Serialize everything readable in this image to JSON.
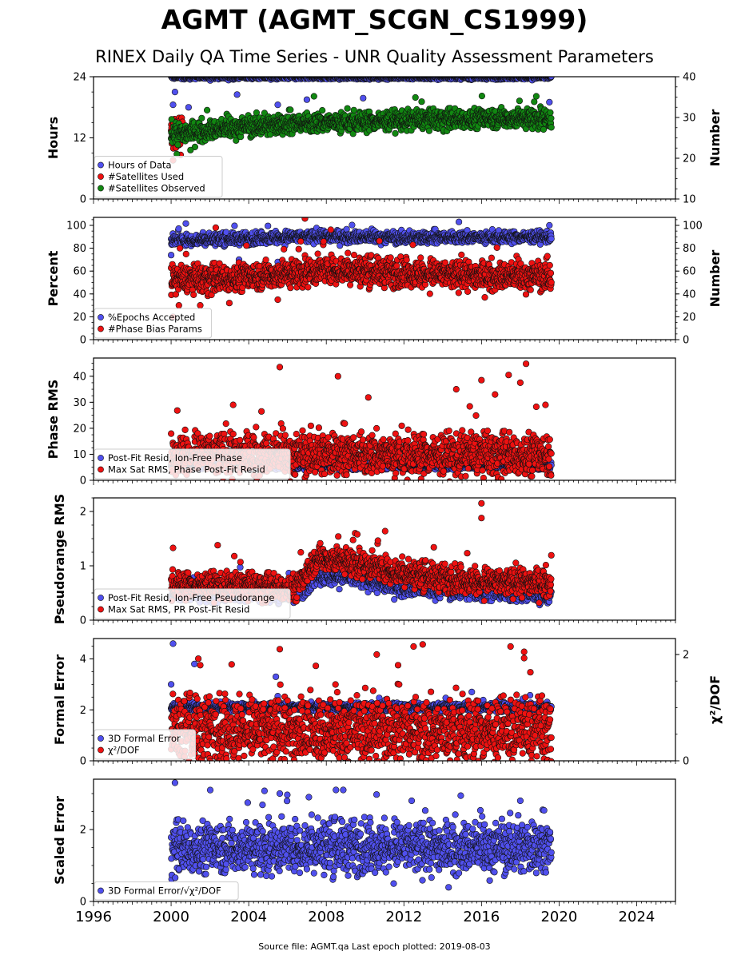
{
  "title": "AGMT (AGMT_SCGN_CS1999)",
  "subtitle": "RINEX Daily QA Time Series - UNR Quality Assessment Parameters",
  "footer": "Source file: AGMT.qa Last epoch plotted: 2019-08-03",
  "colors": {
    "blue": "#5050ee",
    "red": "#ee1111",
    "green": "#118811"
  },
  "chart_data": [
    {
      "type": "scatter",
      "title": "",
      "xlim": [
        1996,
        2026
      ],
      "x_ticks": [
        "1996",
        "2000",
        "2004",
        "2008",
        "2012",
        "2016",
        "2020",
        "2024"
      ],
      "ylabel": "Hours",
      "ylim": [
        0,
        24
      ],
      "y_ticks": [
        "0",
        "12",
        "24"
      ],
      "y2label": "Number",
      "y2lim": [
        10,
        40
      ],
      "y2_ticks": [
        "10",
        "20",
        "30",
        "40"
      ],
      "legend": [
        "Hours of Data",
        "#Satellites Used",
        "#Satellites Observed"
      ],
      "legend_loc": "lower-left",
      "series": [
        {
          "name": "Hours of Data",
          "axis": "left",
          "x_range": [
            2000.0,
            2019.6
          ],
          "typical": 23.9,
          "spread": 0.2,
          "outliers": [
            [
              2000.1,
              18.5
            ],
            [
              2000.2,
              21.0
            ],
            [
              2000.9,
              18.0
            ],
            [
              2003.4,
              20.5
            ],
            [
              2005.5,
              18.5
            ],
            [
              2007.0,
              19.5
            ],
            [
              2009.9,
              19.8
            ],
            [
              2019.5,
              19.0
            ]
          ]
        },
        {
          "name": "#Satellites Used",
          "axis": "right",
          "x_range": [
            2000.0,
            2000.6
          ],
          "typical": 26.0,
          "spread": 2.0,
          "outliers": [
            [
              2000.1,
              19.5
            ]
          ]
        },
        {
          "name": "#Satellites Observed",
          "axis": "right",
          "x_range": [
            2000.0,
            2019.6
          ],
          "typical": 27.5,
          "spread": 1.2,
          "trend": [
            [
              2000,
              26.0
            ],
            [
              2004,
              27.8
            ],
            [
              2008,
              28.8
            ],
            [
              2012,
              29.3
            ],
            [
              2016,
              29.8
            ],
            [
              2019.6,
              29.8
            ]
          ],
          "outliers": [
            [
              2000.3,
              21.0
            ],
            [
              2001.0,
              22.0
            ]
          ]
        }
      ]
    },
    {
      "type": "scatter",
      "xlim": [
        1996,
        2026
      ],
      "ylabel": "Percent",
      "ylim": [
        0,
        107
      ],
      "y_ticks": [
        "0",
        "20",
        "40",
        "60",
        "80",
        "100"
      ],
      "y2label": "Number",
      "y2lim": [
        0,
        107
      ],
      "y2_ticks": [
        "0",
        "20",
        "40",
        "60",
        "80",
        "100"
      ],
      "legend": [
        "%Epochs Accepted",
        "#Phase Bias Params"
      ],
      "legend_loc": "lower-left",
      "series": [
        {
          "name": "%Epochs Accepted",
          "axis": "left",
          "x_range": [
            2000.0,
            2019.6
          ],
          "typical": 88.0,
          "spread": 2.5,
          "trend": [
            [
              2000,
              86.5
            ],
            [
              2008,
              90.5
            ],
            [
              2012,
              89.0
            ],
            [
              2019.6,
              90.0
            ]
          ],
          "outliers": [
            [
              2000.0,
              74.0
            ],
            [
              2003.5,
              70.0
            ],
            [
              2005.5,
              68.0
            ],
            [
              2019.5,
              100.0
            ]
          ]
        },
        {
          "name": "#Phase Bias Params",
          "axis": "right",
          "x_range": [
            2000.0,
            2019.6
          ],
          "typical": 55.0,
          "spread": 6.0,
          "trend": [
            [
              2000,
              52.0
            ],
            [
              2004,
              55.0
            ],
            [
              2008,
              61.0
            ],
            [
              2012,
              58.0
            ],
            [
              2016,
              56.0
            ],
            [
              2019.6,
              55.0
            ]
          ],
          "outliers": [
            [
              2000.1,
              20.0
            ],
            [
              2000.4,
              30.0
            ],
            [
              2001.5,
              30.0
            ],
            [
              2003.0,
              32.0
            ],
            [
              2005.5,
              35.0
            ],
            [
              2006.9,
              106.0
            ],
            [
              2002.3,
              98.0
            ],
            [
              2019.4,
              73.0
            ]
          ]
        }
      ]
    },
    {
      "type": "scatter",
      "xlim": [
        1996,
        2026
      ],
      "ylabel": "Phase RMS",
      "ylim": [
        0,
        47
      ],
      "y_ticks": [
        "0",
        "10",
        "20",
        "30",
        "40"
      ],
      "legend": [
        "Post-Fit Resid, Ion-Free Phase",
        "Max Sat RMS, Phase Post-Fit Resid"
      ],
      "legend_loc": "lower-left",
      "series": [
        {
          "name": "Post-Fit Resid, Ion-Free Phase",
          "axis": "left",
          "x_range": [
            2000.0,
            2019.6
          ],
          "typical": 5.5,
          "spread": 0.6
        },
        {
          "name": "Max Sat RMS, Phase Post-Fit Resid",
          "axis": "left",
          "x_range": [
            2000.0,
            2019.6
          ],
          "typical": 10.0,
          "spread": 4.0,
          "outliers": [
            [
              2005.6,
              43.5
            ],
            [
              2008.6,
              40.0
            ],
            [
              2003.2,
              29.0
            ],
            [
              2014.7,
              35.0
            ],
            [
              2016.0,
              38.5
            ],
            [
              2017.4,
              40.5
            ],
            [
              2018.3,
              44.8
            ],
            [
              2018.0,
              37.5
            ],
            [
              2016.7,
              33.0
            ],
            [
              2019.3,
              29.0
            ]
          ]
        }
      ]
    },
    {
      "type": "scatter",
      "xlim": [
        1996,
        2026
      ],
      "ylabel": "Pseudorange RMS",
      "ylim": [
        0,
        2.25
      ],
      "y_ticks": [
        "0",
        "1",
        "2"
      ],
      "legend": [
        "Post-Fit Resid, Ion-Free Pseudorange",
        "Max Sat RMS, PR Post-Fit Resid"
      ],
      "legend_loc": "lower-left",
      "series": [
        {
          "name": "Post-Fit Resid, Ion-Free Pseudorange",
          "axis": "left",
          "x_range": [
            2000.0,
            2019.6
          ],
          "typical": 0.5,
          "spread": 0.08,
          "trend": [
            [
              2000,
              0.5
            ],
            [
              2006.5,
              0.5
            ],
            [
              2007.5,
              0.8
            ],
            [
              2009,
              0.8
            ],
            [
              2012,
              0.6
            ],
            [
              2019.6,
              0.45
            ]
          ]
        },
        {
          "name": "Max Sat RMS, PR Post-Fit Resid",
          "axis": "left",
          "x_range": [
            2000.0,
            2019.6
          ],
          "typical": 0.7,
          "spread": 0.12,
          "trend": [
            [
              2000,
              0.65
            ],
            [
              2006.5,
              0.6
            ],
            [
              2007.5,
              1.15
            ],
            [
              2009,
              1.1
            ],
            [
              2012,
              0.85
            ],
            [
              2016,
              0.7
            ],
            [
              2019.6,
              0.7
            ]
          ],
          "outliers": [
            [
              2000.1,
              1.33
            ],
            [
              2002.4,
              1.38
            ],
            [
              2009.6,
              1.58
            ],
            [
              2016.0,
              2.15
            ],
            [
              2016.0,
              1.88
            ]
          ]
        }
      ]
    },
    {
      "type": "scatter",
      "xlim": [
        1996,
        2026
      ],
      "ylabel": "Formal Error",
      "ylim": [
        0,
        4.8
      ],
      "y_ticks": [
        "0",
        "2",
        "4"
      ],
      "y2label": "χ²/DOF",
      "y2lim": [
        0,
        2.3
      ],
      "y2_ticks": [
        "0",
        "2"
      ],
      "legend": [
        "3D Formal Error",
        "χ²/DOF"
      ],
      "legend_loc": "lower-left",
      "series": [
        {
          "name": "3D Formal Error",
          "axis": "left",
          "x_range": [
            2000.0,
            2019.6
          ],
          "typical": 2.1,
          "spread": 0.08,
          "outliers": [
            [
              2000.1,
              4.6
            ],
            [
              2000.0,
              3.0
            ],
            [
              2001.2,
              3.8
            ],
            [
              2005.4,
              3.3
            ],
            [
              2015.5,
              2.7
            ]
          ]
        },
        {
          "name": "χ²/DOF",
          "axis": "right",
          "x_range": [
            2000.0,
            2019.6
          ],
          "typical": 0.55,
          "spread": 0.3,
          "outliers": [
            [
              2005.6,
              2.1
            ],
            [
              2012.5,
              2.15
            ],
            [
              2017.5,
              2.15
            ],
            [
              2018.2,
              2.05
            ],
            [
              2010.6,
              2.0
            ],
            [
              2001.5,
              1.8
            ],
            [
              2011.7,
              1.8
            ]
          ]
        }
      ]
    },
    {
      "type": "scatter",
      "xlim": [
        1996,
        2026
      ],
      "ylabel": "Scaled Error",
      "ylim": [
        0,
        3.4
      ],
      "y_ticks": [
        "0",
        "2"
      ],
      "legend": [
        "3D Formal Error/√χ²/DOF"
      ],
      "legend_loc": "lower-left",
      "series": [
        {
          "name": "3D Formal Error/√χ²/DOF",
          "axis": "left",
          "x_range": [
            2000.0,
            2019.6
          ],
          "typical": 1.5,
          "spread": 0.35,
          "outliers": [
            [
              2000.2,
              3.3
            ],
            [
              2008.5,
              3.1
            ],
            [
              2005.6,
              3.0
            ],
            [
              2007.1,
              2.9
            ],
            [
              2012.4,
              2.8
            ],
            [
              2018.0,
              2.8
            ],
            [
              2000.4,
              0.9
            ],
            [
              2007.0,
              0.9
            ]
          ]
        }
      ]
    }
  ]
}
